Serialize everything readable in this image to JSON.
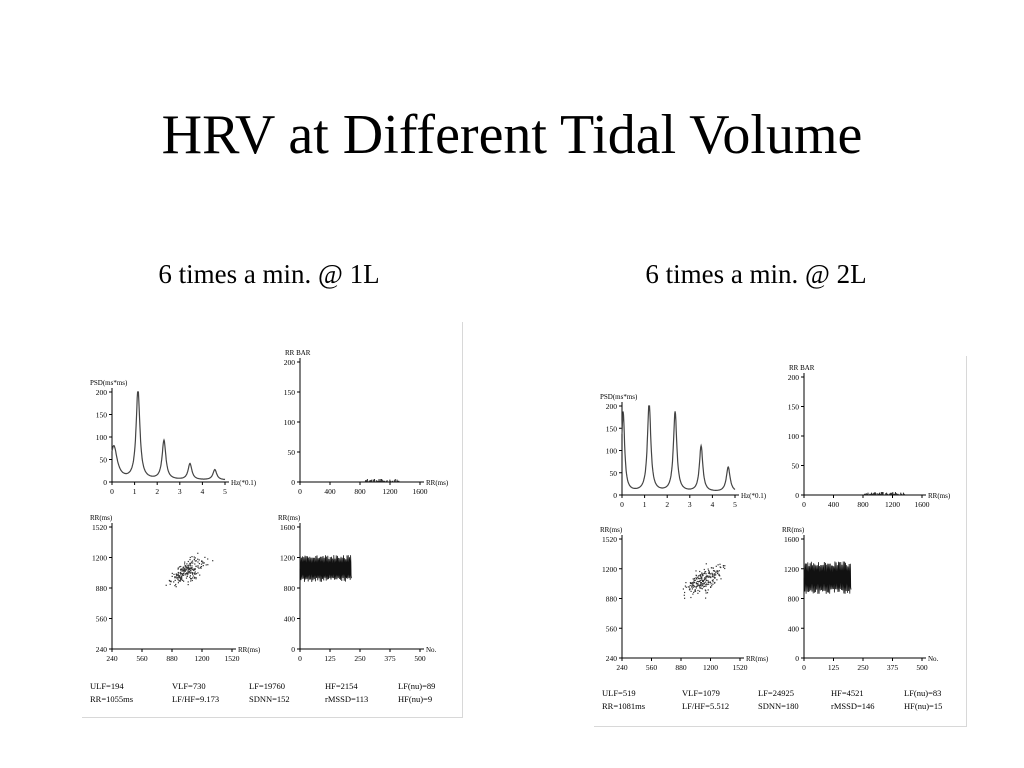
{
  "slide": {
    "title": "HRV at Different Tidal Volume",
    "captions": [
      "6 times a min. @ 1L",
      "6 times a min. @ 2L"
    ]
  },
  "chart_data": [
    {
      "type": "composite",
      "caption": "6 times a min. @ 1L",
      "psd": {
        "type": "line",
        "ylabel": "PSD(ms*ms)",
        "xlabel": "Hz(*0.1)",
        "xlim": [
          0,
          5
        ],
        "ylim": [
          0,
          200
        ],
        "xticks": [
          "0",
          "1",
          "2",
          "3",
          "4",
          "5"
        ],
        "yticks": [
          "0",
          "50",
          "100",
          "150",
          "200"
        ],
        "peaks": [
          {
            "x": 0.08,
            "y": 75,
            "w": 0.18
          },
          {
            "x": 1.15,
            "y": 200,
            "w": 0.1
          },
          {
            "x": 2.3,
            "y": 87,
            "w": 0.1
          },
          {
            "x": 3.45,
            "y": 36,
            "w": 0.1
          },
          {
            "x": 4.55,
            "y": 23,
            "w": 0.1
          }
        ],
        "baseline": 4
      },
      "rr_bar": {
        "type": "bar",
        "title": "RR BAR",
        "xlabel": "RR(ms)",
        "xlim": [
          0,
          1600
        ],
        "ylim": [
          0,
          200
        ],
        "xticks": [
          "0",
          "400",
          "800",
          "1200",
          "1600"
        ],
        "yticks": [
          "0",
          "50",
          "100",
          "150",
          "200"
        ],
        "range": [
          850,
          1320
        ],
        "max_count": 5
      },
      "poincare": {
        "type": "scatter",
        "ylabel": "RR(ms)",
        "xlabel": "RR(ms)",
        "xlim": [
          240,
          1520
        ],
        "ylim": [
          240,
          1520
        ],
        "xticks": [
          "240",
          "560",
          "880",
          "1200",
          "1520"
        ],
        "yticks": [
          "240",
          "560",
          "880",
          "1200",
          "1520"
        ],
        "center": [
          1000,
          1060
        ],
        "spread": 170,
        "n": 220
      },
      "tachogram": {
        "type": "line",
        "ylabel": "RR(ms)",
        "xlabel": "No.",
        "xlim": [
          0,
          500
        ],
        "ylim": [
          0,
          1600
        ],
        "xticks": [
          "0",
          "125",
          "250",
          "375",
          "500"
        ],
        "yticks": [
          "0",
          "400",
          "800",
          "1200",
          "1600"
        ],
        "n": 215,
        "mean": 1055,
        "amp": 170,
        "period": 10
      },
      "stats": [
        [
          "ULF=194",
          "VLF=730",
          "LF=19760",
          "HF=2154",
          "LF(nu)=89"
        ],
        [
          "RR=1055ms",
          "LF/HF=9.173",
          "SDNN=152",
          "rMSSD=113",
          "HF(nu)=9"
        ]
      ]
    },
    {
      "type": "composite",
      "caption": "6 times a min. @ 2L",
      "psd": {
        "type": "line",
        "ylabel": "PSD(ms*ms)",
        "xlabel": "Hz(*0.1)",
        "xlim": [
          0,
          5
        ],
        "ylim": [
          0,
          200
        ],
        "xticks": [
          "0",
          "1",
          "2",
          "3",
          "4",
          "5"
        ],
        "yticks": [
          "0",
          "50",
          "100",
          "150",
          "200"
        ],
        "peaks": [
          {
            "x": 0.05,
            "y": 180,
            "w": 0.08
          },
          {
            "x": 1.2,
            "y": 200,
            "w": 0.09
          },
          {
            "x": 2.35,
            "y": 180,
            "w": 0.09
          },
          {
            "x": 3.5,
            "y": 103,
            "w": 0.09
          },
          {
            "x": 4.7,
            "y": 56,
            "w": 0.1
          }
        ],
        "baseline": 6
      },
      "rr_bar": {
        "type": "bar",
        "title": "RR BAR",
        "xlabel": "RR(ms)",
        "xlim": [
          0,
          1600
        ],
        "ylim": [
          0,
          200
        ],
        "xticks": [
          "0",
          "400",
          "800",
          "1200",
          "1600"
        ],
        "yticks": [
          "0",
          "50",
          "100",
          "150",
          "200"
        ],
        "range": [
          820,
          1360
        ],
        "max_count": 5
      },
      "poincare": {
        "type": "scatter",
        "ylabel": "RR(ms)",
        "xlabel": "RR(ms)",
        "xlim": [
          240,
          1520
        ],
        "ylim": [
          240,
          1520
        ],
        "xticks": [
          "240",
          "560",
          "880",
          "1200",
          "1520"
        ],
        "yticks": [
          "240",
          "560",
          "880",
          "1200",
          "1520"
        ],
        "center": [
          1080,
          1080
        ],
        "spread": 190,
        "n": 220
      },
      "tachogram": {
        "type": "line",
        "ylabel": "RR(ms)",
        "xlabel": "No.",
        "xlim": [
          0,
          500
        ],
        "ylim": [
          0,
          1600
        ],
        "xticks": [
          "0",
          "125",
          "250",
          "375",
          "500"
        ],
        "yticks": [
          "0",
          "400",
          "800",
          "1200",
          "1600"
        ],
        "n": 200,
        "mean": 1081,
        "amp": 210,
        "period": 10
      },
      "stats": [
        [
          "ULF=519",
          "VLF=1079",
          "LF=24925",
          "HF=4521",
          "LF(nu)=83"
        ],
        [
          "RR=1081ms",
          "LF/HF=5.512",
          "SDNN=180",
          "rMSSD=146",
          "HF(nu)=15"
        ]
      ]
    }
  ]
}
